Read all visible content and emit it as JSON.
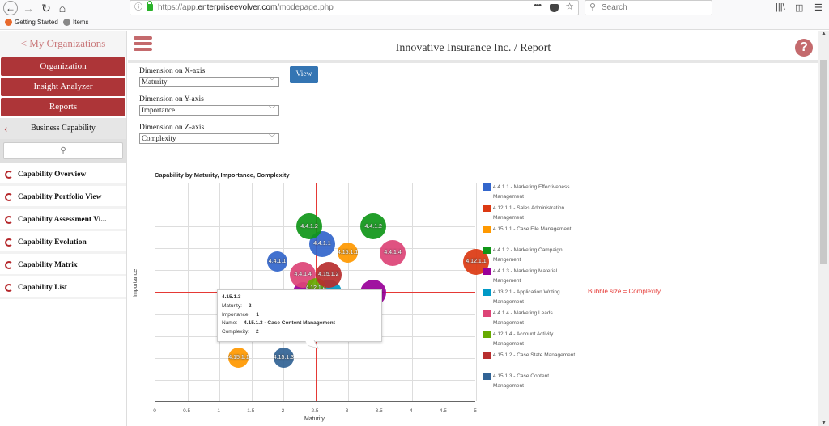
{
  "browser": {
    "url_prefix": "https://app.",
    "url_domain": "enterpriseevolver.com",
    "url_path": "/modepage.php",
    "search_placeholder": "Search",
    "bookmarks": [
      {
        "label": "Getting Started",
        "icon": "firefox-icon",
        "color": "#e8692c"
      },
      {
        "label": "Items",
        "icon": "globe-icon",
        "color": "#777777"
      }
    ]
  },
  "sidebar": {
    "back_link": "< My Organizations",
    "buttons": [
      {
        "label": "Organization"
      },
      {
        "label": "Insight Analyzer"
      },
      {
        "label": "Reports"
      }
    ],
    "section": "Business Capability",
    "items": [
      {
        "label": "Capability Overview"
      },
      {
        "label": "Capability Portfolio View"
      },
      {
        "label": "Capability Assessment Vi..."
      },
      {
        "label": "Capability Evolution"
      },
      {
        "label": "Capability Matrix"
      },
      {
        "label": "Capability List"
      }
    ]
  },
  "header": {
    "title": "Innovative Insurance Inc. / Report",
    "help": "?"
  },
  "form": {
    "x_label": "Dimension on X-axis",
    "x_value": "Maturity",
    "y_label": "Dimension on Y-axis",
    "y_value": "Importance",
    "z_label": "Dimension on Z-axis",
    "z_value": "Complexity",
    "view_button": "View"
  },
  "chart_data": {
    "type": "scatter",
    "subtype": "bubble",
    "title": "Capability by Maturity, Importance, Complexity",
    "xlabel": "Maturity",
    "ylabel": "Importance",
    "xlim": [
      0,
      5
    ],
    "ylim": [
      0,
      5
    ],
    "x_ticks": [
      "0",
      "0.5",
      "1",
      "1.5",
      "2",
      "2.5",
      "3",
      "3.5",
      "4",
      "4.5",
      "5"
    ],
    "grid": true,
    "reference_lines": {
      "x": 2.5,
      "y": 2.5,
      "color": "#e53935"
    },
    "size_note": "Bubble size = Complexity",
    "series": [
      {
        "id": "4.4.1.1",
        "name": "4.4.1.1 - Marketing Effectiveness Management",
        "color": "#3366cc",
        "points": [
          {
            "x": 1.9,
            "y": 3.2,
            "size": 2,
            "label": "4.4.1.1"
          },
          {
            "x": 2.6,
            "y": 3.6,
            "size": 3,
            "label": "4.4.1.1"
          }
        ]
      },
      {
        "id": "4.12.1.1",
        "name": "4.12.1.1 - Sales Administration Management",
        "color": "#dc3912",
        "points": [
          {
            "x": 5.0,
            "y": 3.2,
            "size": 3,
            "label": "4.12.1.1"
          }
        ]
      },
      {
        "id": "4.15.1.1",
        "name": "4.15.1.1 - Case File Management",
        "color": "#ff9900",
        "points": [
          {
            "x": 3.0,
            "y": 3.4,
            "size": 2,
            "label": "4.15.1.1"
          },
          {
            "x": 1.3,
            "y": 1.0,
            "size": 2,
            "label": "4.15.1.1"
          }
        ]
      },
      {
        "id": "4.4.1.2",
        "name": "4.4.1.2 - Marketing Campaign Mangement",
        "color": "#109618",
        "points": [
          {
            "x": 2.4,
            "y": 4.0,
            "size": 3,
            "label": "4.4.1.2"
          },
          {
            "x": 3.4,
            "y": 4.0,
            "size": 3,
            "label": "4.4.1.2"
          }
        ]
      },
      {
        "id": "4.4.1.3",
        "name": "4.4.1.3 - Marketing Material Mangement",
        "color": "#990099",
        "points": [
          {
            "x": 2.3,
            "y": 2.5,
            "size": 2,
            "label": "4.4.1.3"
          },
          {
            "x": 3.4,
            "y": 2.5,
            "size": 3,
            "label": "4.4.1.3"
          }
        ]
      },
      {
        "id": "4.13.2.1",
        "name": "4.13.2.1 - Application Writing Management",
        "color": "#0099c6",
        "points": [
          {
            "x": 2.7,
            "y": 2.5,
            "size": 3,
            "label": "4.13.2.1"
          }
        ]
      },
      {
        "id": "4.4.1.4",
        "name": "4.4.1.4 - Marketing Leads Management",
        "color": "#dd4477",
        "points": [
          {
            "x": 2.3,
            "y": 2.9,
            "size": 3,
            "label": "4.4.1.4"
          },
          {
            "x": 3.7,
            "y": 3.4,
            "size": 3,
            "label": "4.4.1.4"
          }
        ]
      },
      {
        "id": "4.12.1.4",
        "name": "4.12.1.4 - Account Activity Management",
        "color": "#66aa00",
        "points": [
          {
            "x": 2.5,
            "y": 2.6,
            "size": 2,
            "label": "4.12.1.4"
          }
        ]
      },
      {
        "id": "4.15.1.2",
        "name": "4.15.1.2 - Case State Management",
        "color": "#b82e2e",
        "points": [
          {
            "x": 2.7,
            "y": 2.9,
            "size": 3,
            "label": "4.15.1.2"
          }
        ]
      },
      {
        "id": "4.15.1.3",
        "name": "4.15.1.3 - Case Content Management",
        "color": "#316395",
        "points": [
          {
            "x": 2.0,
            "y": 1.0,
            "size": 2,
            "label": "4.15.1.3"
          }
        ]
      }
    ],
    "legend_position": "right",
    "tooltip": {
      "title": "4.15.1.3",
      "maturity_label": "Maturity:",
      "maturity": "2",
      "importance_label": "Importance:",
      "importance": "1",
      "name_label": "Name:",
      "name": "4.15.1.3 - Case Content Management",
      "complexity_label": "Complexity:",
      "complexity": "2"
    }
  }
}
